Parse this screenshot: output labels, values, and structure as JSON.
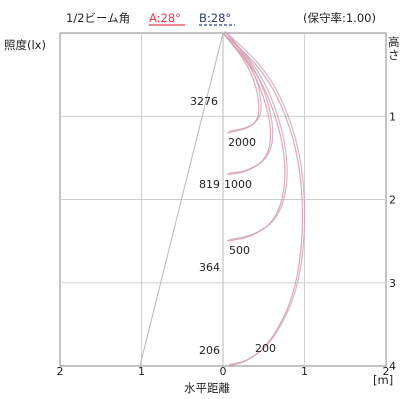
{
  "header": {
    "beam_angle_label": "1/2ビーム角",
    "a_label": "A:28°",
    "b_label": "B:28°",
    "maintenance_label": "(保守率:1.00)"
  },
  "axes": {
    "y_left_label": "照度(lx)",
    "y_right_label": "高さ",
    "x_label": "水平距離",
    "x_unit": "[m]",
    "x_ticks": [
      "2",
      "1",
      "0",
      "1",
      "2"
    ],
    "height_ticks": [
      "1",
      "2",
      "3",
      "4"
    ]
  },
  "chart_data": {
    "type": "isolux-diagram",
    "beam_half_angle_A_deg": 28,
    "beam_half_angle_B_deg": 28,
    "maintenance_factor": 1.0,
    "center_illuminance_by_height": [
      {
        "height_m": 1,
        "lux": "3276"
      },
      {
        "height_m": 2,
        "lux": "819"
      },
      {
        "height_m": 3,
        "lux": "364"
      },
      {
        "height_m": 4,
        "lux": "206"
      }
    ],
    "isolux_curve_labels": [
      "2000",
      "1000",
      "500",
      "200"
    ],
    "isolux_curves": [
      {
        "lux": 2000,
        "points": [
          [
            0,
            0
          ],
          [
            0.25,
            0.3
          ],
          [
            0.4,
            0.6
          ],
          [
            0.45,
            0.9
          ],
          [
            0.42,
            1.05
          ],
          [
            0.3,
            1.15
          ],
          [
            0.05,
            1.2
          ]
        ]
      },
      {
        "lux": 1000,
        "points": [
          [
            0,
            0
          ],
          [
            0.35,
            0.4
          ],
          [
            0.55,
            0.9
          ],
          [
            0.6,
            1.3
          ],
          [
            0.5,
            1.55
          ],
          [
            0.25,
            1.68
          ],
          [
            0.05,
            1.7
          ]
        ]
      },
      {
        "lux": 500,
        "points": [
          [
            0,
            0
          ],
          [
            0.45,
            0.5
          ],
          [
            0.72,
            1.2
          ],
          [
            0.78,
            1.8
          ],
          [
            0.65,
            2.25
          ],
          [
            0.35,
            2.45
          ],
          [
            0.05,
            2.5
          ]
        ]
      },
      {
        "lux": 200,
        "points": [
          [
            0,
            0
          ],
          [
            0.55,
            0.5
          ],
          [
            0.9,
            1.3
          ],
          [
            1.0,
            2.2
          ],
          [
            0.9,
            3.1
          ],
          [
            0.6,
            3.7
          ],
          [
            0.3,
            3.95
          ],
          [
            0.05,
            4.0
          ]
        ]
      }
    ],
    "x_range": [
      -2,
      2
    ],
    "height_range": [
      0,
      4
    ]
  }
}
